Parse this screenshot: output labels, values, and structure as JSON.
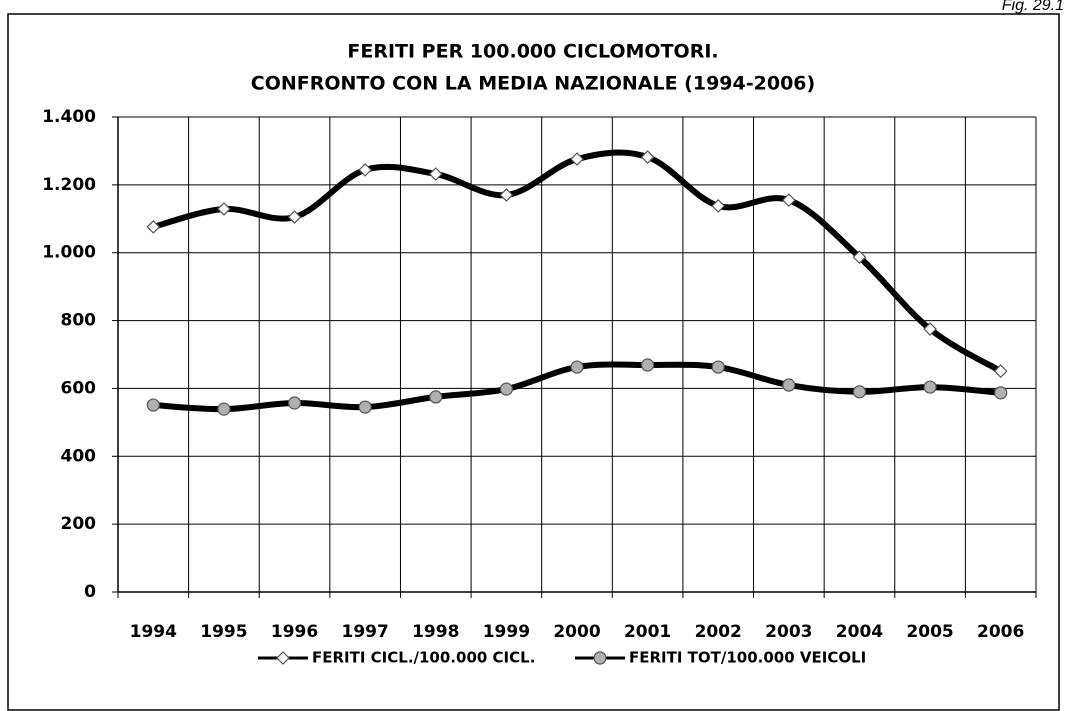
{
  "figure_label": "Fig. 29.1",
  "chart_data": {
    "type": "line",
    "title": "FERITI PER 100.000 CICLOMOTORI.",
    "subtitle": "CONFRONTO CON LA MEDIA NAZIONALE (1994-2006)",
    "categories": [
      "1994",
      "1995",
      "1996",
      "1997",
      "1998",
      "1999",
      "2000",
      "2001",
      "2002",
      "2003",
      "2004",
      "2005",
      "2006"
    ],
    "series": [
      {
        "name": "FERITI CICL./100.000 CICL.",
        "color": "#000000",
        "marker": "diamond",
        "marker_color": "#ffffff",
        "values": [
          1076,
          1129,
          1105,
          1244,
          1232,
          1170,
          1276,
          1282,
          1138,
          1155,
          987,
          775,
          651
        ]
      },
      {
        "name": "FERITI TOT/100.000 VEICOLI",
        "color": "#000000",
        "marker": "circle",
        "marker_color": "#b0b0b0",
        "values": [
          551,
          539,
          557,
          545,
          575,
          598,
          663,
          669,
          663,
          610,
          590,
          604,
          587
        ]
      }
    ],
    "ylim": [
      0,
      1400
    ],
    "yticks": [
      0,
      200,
      400,
      600,
      800,
      {
        "value": 1000,
        "label": "1.000"
      },
      {
        "value": 1200,
        "label": "1.200"
      },
      {
        "value": 1400,
        "label": "1.400"
      }
    ],
    "grid": true,
    "smooth": true,
    "legend": "bottom"
  }
}
